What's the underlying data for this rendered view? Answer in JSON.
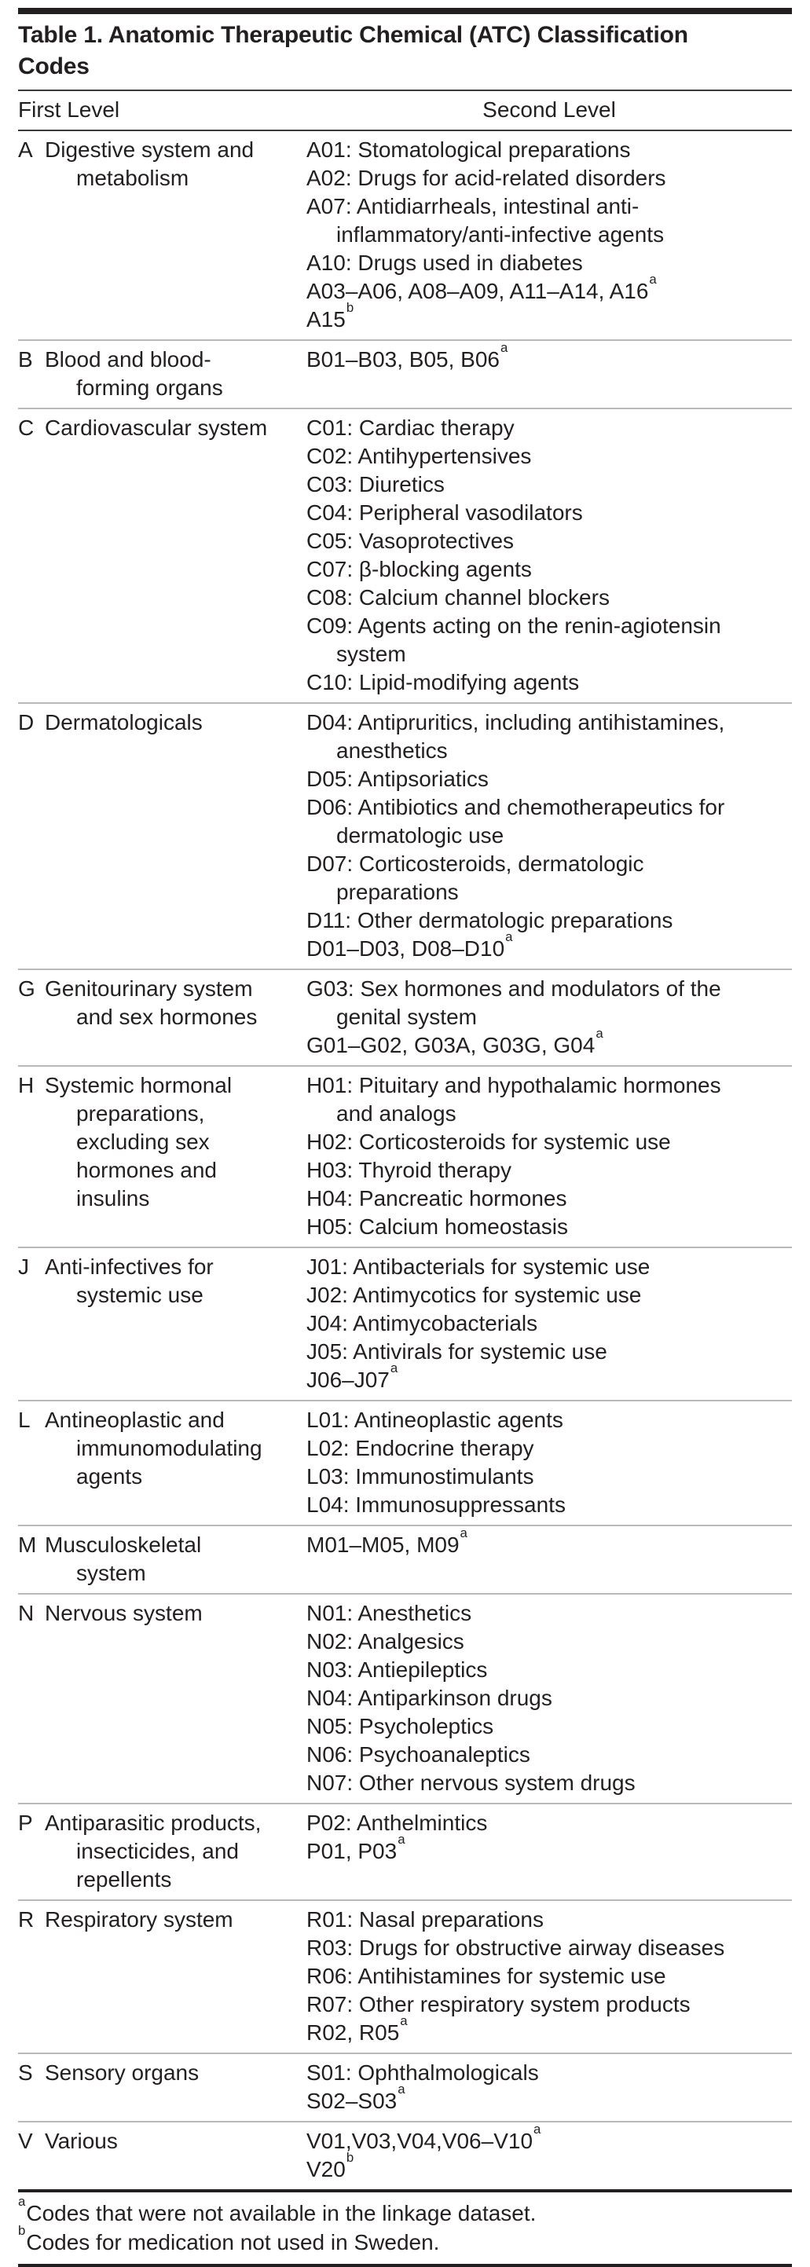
{
  "title": "Table 1. Anatomic Therapeutic Chemical (ATC) Classification\nCodes",
  "columns": {
    "first": "First Level",
    "second": "Second Level"
  },
  "colors": {
    "text": "#231f20",
    "heavy_rule": "#231f20",
    "dark_rule": "#3a3a3a",
    "light_rule": "#b7b9bb",
    "background": "#ffffff"
  },
  "rows": [
    {
      "letter": "A",
      "category": "Digestive system and\nmetabolism",
      "items": [
        {
          "text": "A01: Stomatological preparations"
        },
        {
          "text": "A02: Drugs for acid-related disorders"
        },
        {
          "text": "A07: Antidiarrheals, intestinal anti-\ninflammatory/anti-infective agents"
        },
        {
          "text": "A10: Drugs used in diabetes"
        },
        {
          "text": "A03–A06, A08–A09, A11–A14, A16",
          "sup": "a"
        },
        {
          "text": "A15",
          "sup": "b"
        }
      ]
    },
    {
      "letter": "B",
      "category": "Blood and blood-\nforming organs",
      "items": [
        {
          "text": "B01–B03, B05, B06",
          "sup": "a"
        }
      ]
    },
    {
      "letter": "C",
      "category": "Cardiovascular system",
      "items": [
        {
          "text": "C01: Cardiac therapy"
        },
        {
          "text": "C02: Antihypertensives"
        },
        {
          "text": "C03: Diuretics"
        },
        {
          "text": "C04: Peripheral vasodilators"
        },
        {
          "text": "C05: Vasoprotectives"
        },
        {
          "text": "C07: β-blocking agents"
        },
        {
          "text": "C08: Calcium channel blockers"
        },
        {
          "text": "C09: Agents acting on the renin-agiotensin\nsystem"
        },
        {
          "text": "C10: Lipid-modifying agents"
        }
      ]
    },
    {
      "letter": "D",
      "category": "Dermatologicals",
      "items": [
        {
          "text": "D04: Antipruritics, including antihistamines,\nanesthetics"
        },
        {
          "text": "D05: Antipsoriatics"
        },
        {
          "text": "D06: Antibiotics and chemotherapeutics for\ndermatologic use"
        },
        {
          "text": "D07: Corticosteroids, dermatologic\npreparations"
        },
        {
          "text": "D11: Other dermatologic preparations"
        },
        {
          "text": "D01–D03, D08–D10",
          "sup": "a"
        }
      ]
    },
    {
      "letter": "G",
      "category": "Genitourinary system\nand sex hormones",
      "items": [
        {
          "text": "G03: Sex hormones and modulators of the\ngenital system"
        },
        {
          "text": "G01–G02, G03A, G03G, G04",
          "sup": "a"
        }
      ]
    },
    {
      "letter": "H",
      "category": "Systemic hormonal\npreparations,\nexcluding sex\nhormones and\ninsulins",
      "items": [
        {
          "text": "H01: Pituitary and hypothalamic hormones\nand analogs"
        },
        {
          "text": "H02: Corticosteroids for systemic use"
        },
        {
          "text": "H03: Thyroid therapy"
        },
        {
          "text": "H04: Pancreatic hormones"
        },
        {
          "text": "H05: Calcium homeostasis"
        }
      ]
    },
    {
      "letter": "J",
      "category": "Anti-infectives for\nsystemic use",
      "items": [
        {
          "text": "J01: Antibacterials for systemic use"
        },
        {
          "text": "J02: Antimycotics for systemic use"
        },
        {
          "text": "J04: Antimycobacterials"
        },
        {
          "text": "J05: Antivirals for systemic use"
        },
        {
          "text": "J06–J07",
          "sup": "a"
        }
      ]
    },
    {
      "letter": "L",
      "category": "Antineoplastic and\nimmunomodulating\nagents",
      "items": [
        {
          "text": "L01: Antineoplastic agents"
        },
        {
          "text": "L02: Endocrine therapy"
        },
        {
          "text": "L03: Immunostimulants"
        },
        {
          "text": "L04: Immunosuppressants"
        }
      ]
    },
    {
      "letter": "M",
      "category": "Musculoskeletal\nsystem",
      "items": [
        {
          "text": "M01–M05, M09",
          "sup": "a"
        }
      ]
    },
    {
      "letter": "N",
      "category": "Nervous system",
      "items": [
        {
          "text": "N01: Anesthetics"
        },
        {
          "text": "N02: Analgesics"
        },
        {
          "text": "N03: Antiepileptics"
        },
        {
          "text": "N04: Antiparkinson drugs"
        },
        {
          "text": "N05: Psycholeptics"
        },
        {
          "text": "N06: Psychoanaleptics"
        },
        {
          "text": "N07: Other nervous system drugs"
        }
      ]
    },
    {
      "letter": "P",
      "category": "Antiparasitic products,\ninsecticides, and\nrepellents",
      "items": [
        {
          "text": "P02: Anthelmintics"
        },
        {
          "text": "P01, P03",
          "sup": "a"
        }
      ]
    },
    {
      "letter": "R",
      "category": "Respiratory system",
      "items": [
        {
          "text": "R01: Nasal preparations"
        },
        {
          "text": "R03: Drugs for obstructive airway diseases"
        },
        {
          "text": "R06: Antihistamines for systemic use"
        },
        {
          "text": "R07: Other respiratory system products"
        },
        {
          "text": "R02, R05",
          "sup": "a"
        }
      ]
    },
    {
      "letter": "S",
      "category": "Sensory organs",
      "items": [
        {
          "text": "S01: Ophthalmologicals"
        },
        {
          "text": "S02–S03",
          "sup": "a"
        }
      ]
    },
    {
      "letter": "V",
      "category": "Various",
      "items": [
        {
          "text": "V01,V03,V04,V06–V10",
          "sup": "a"
        },
        {
          "text": "V20",
          "sup": "b"
        }
      ]
    }
  ],
  "footnotes": [
    {
      "sup": "a",
      "text": "Codes that were not available in the linkage dataset."
    },
    {
      "sup": "b",
      "text": "Codes for medication not used in Sweden."
    }
  ]
}
